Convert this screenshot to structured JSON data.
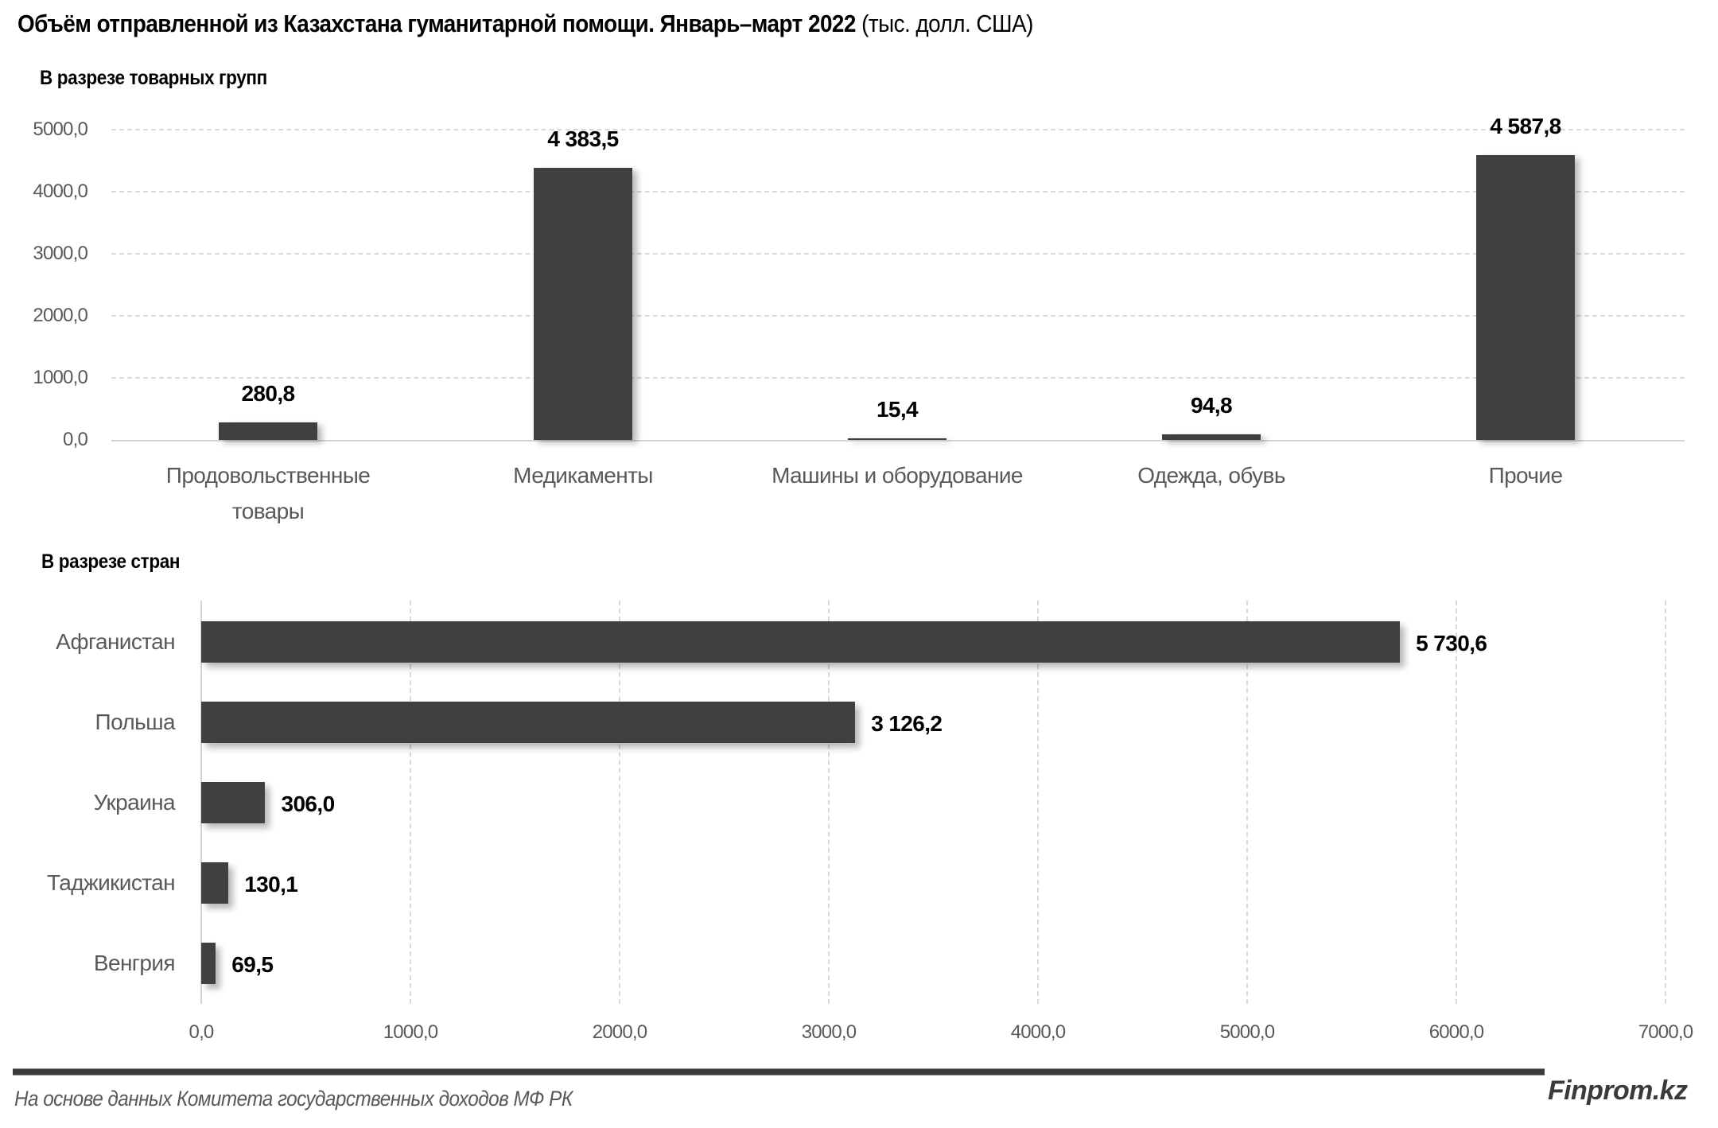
{
  "header": {
    "title_bold": "Объём отправленной из Казахстана гуманитарной помощи. Январь–март 2022",
    "title_unit": "(тыс. долл. США)"
  },
  "footer": {
    "source": "На основе данных Комитета государственных доходов МФ РК",
    "brand": "Finprom.kz"
  },
  "colors": {
    "bar": "#404040",
    "grid": "#d9d9d9",
    "axis_text": "#595959"
  },
  "chart_data": [
    {
      "type": "bar",
      "title": "В разрезе товарных групп",
      "orientation": "vertical",
      "categories": [
        "Продовольственные товары",
        "Медикаменты",
        "Машины и оборудование",
        "Одежда, обувь",
        "Прочие"
      ],
      "category_lines": [
        [
          "Продовольственные",
          "товары"
        ],
        [
          "Медикаменты"
        ],
        [
          "Машины и оборудование"
        ],
        [
          "Одежда, обувь"
        ],
        [
          "Прочие"
        ]
      ],
      "values": [
        280.8,
        4383.5,
        15.4,
        94.8,
        4587.8
      ],
      "value_labels": [
        "280,8",
        "4 383,5",
        "15,4",
        "94,8",
        "4 587,8"
      ],
      "xlabel": "",
      "ylabel": "тыс. долл. США",
      "ylim": [
        0,
        5000
      ],
      "yticks": [
        "0,0",
        "1000,0",
        "2000,0",
        "3000,0",
        "4000,0",
        "5000,0"
      ],
      "grid": true,
      "legend": null
    },
    {
      "type": "bar",
      "title": "В разрезе стран",
      "orientation": "horizontal",
      "categories": [
        "Афганистан",
        "Польша",
        "Украина",
        "Таджикистан",
        "Венгрия"
      ],
      "values": [
        5730.6,
        3126.2,
        306.0,
        130.1,
        69.5
      ],
      "value_labels": [
        "5 730,6",
        "3 126,2",
        "306,0",
        "130,1",
        "69,5"
      ],
      "xlabel": "тыс. долл. США",
      "ylabel": "",
      "xlim": [
        0,
        7000
      ],
      "xticks": [
        "0,0",
        "1000,0",
        "2000,0",
        "3000,0",
        "4000,0",
        "5000,0",
        "6000,0",
        "7000,0"
      ],
      "grid": true,
      "legend": null
    }
  ]
}
